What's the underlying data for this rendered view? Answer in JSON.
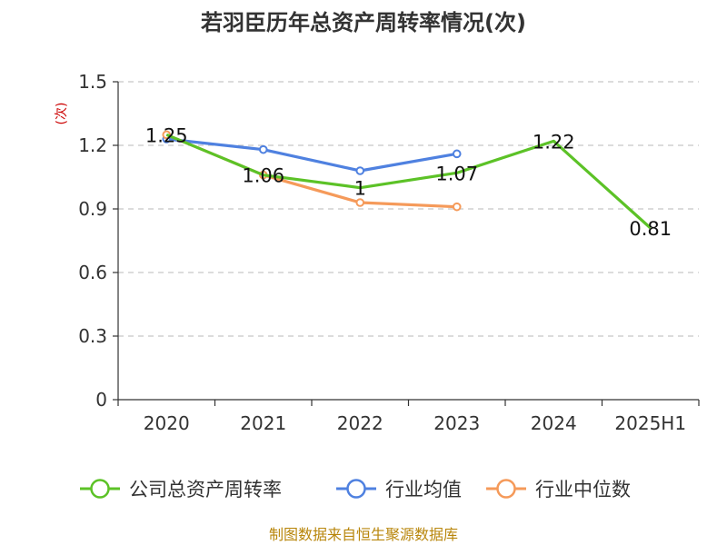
{
  "chart_data": {
    "type": "line",
    "title": "若羽臣历年总资产周转率情况(次)",
    "ylabel": "(次)",
    "xlabel": "",
    "categories": [
      "2020",
      "2021",
      "2022",
      "2023",
      "2024",
      "2025H1"
    ],
    "ylim": [
      0,
      1.5
    ],
    "yticks": [
      "0",
      "0.3",
      "0.6",
      "0.9",
      "1.2",
      "1.5"
    ],
    "grid": true,
    "legend_position": "bottom",
    "series": [
      {
        "name": "公司总资产周转率",
        "color": "#5cc227",
        "values": [
          1.25,
          1.06,
          1.0,
          1.07,
          1.22,
          0.81
        ],
        "labels": [
          "1.25",
          "1.06",
          "1",
          "1.07",
          "1.22",
          "0.81"
        ]
      },
      {
        "name": "行业均值",
        "color": "#4f81e0",
        "values": [
          1.23,
          1.18,
          1.08,
          1.16,
          null,
          null
        ]
      },
      {
        "name": "行业中位数",
        "color": "#f59a5a",
        "values": [
          1.25,
          1.06,
          0.93,
          0.91,
          null,
          null
        ]
      }
    ]
  },
  "source": "制图数据来自恒生聚源数据库"
}
